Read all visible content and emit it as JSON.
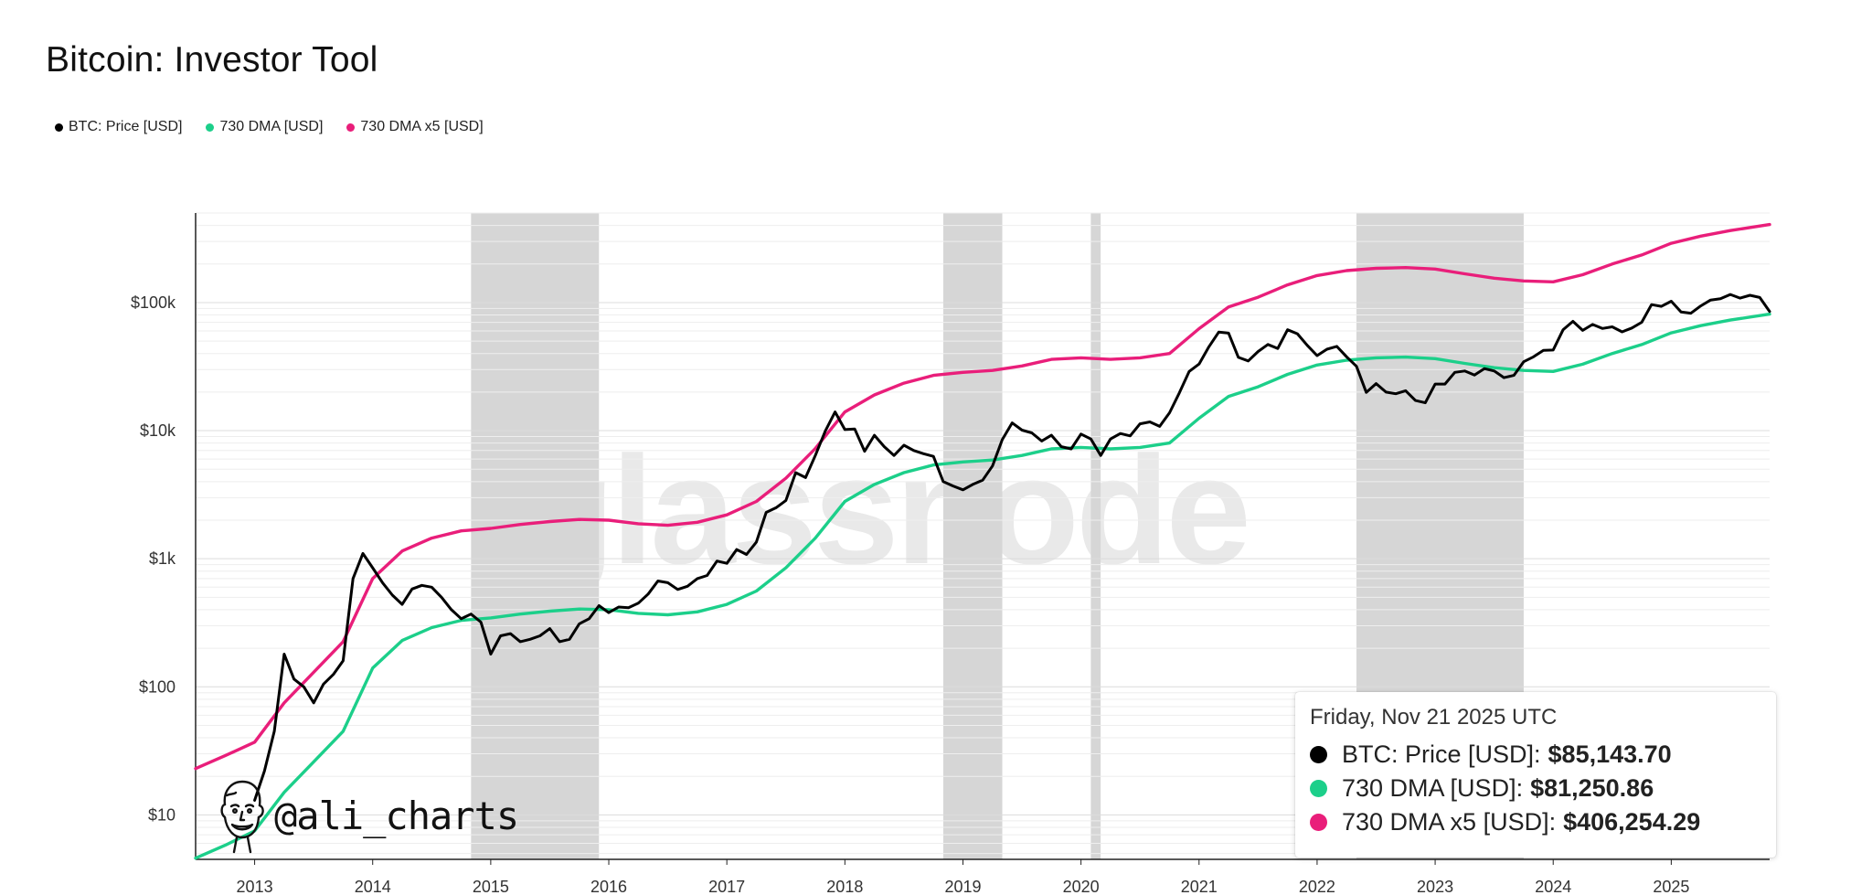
{
  "page": {
    "title": "Bitcoin: Investor Tool",
    "watermark": "glassnode",
    "signature": "@ali_charts"
  },
  "legend": [
    {
      "label": "BTC: Price [USD]",
      "color": "#000000"
    },
    {
      "label": "730 DMA [USD]",
      "color": "#1ccf8a"
    },
    {
      "label": "730 DMA x5 [USD]",
      "color": "#e91e7a"
    }
  ],
  "tooltip": {
    "date": "Friday, Nov 21 2025 UTC",
    "rows": [
      {
        "label": "BTC: Price [USD]:",
        "value": "$85,143.70",
        "color": "#000000"
      },
      {
        "label": "730 DMA [USD]:",
        "value": "$81,250.86",
        "color": "#1ccf8a"
      },
      {
        "label": "730 DMA x5 [USD]:",
        "value": "$406,254.29",
        "color": "#e91e7a"
      }
    ]
  },
  "chart_data": {
    "type": "line",
    "title": "Bitcoin: Investor Tool",
    "xlabel": "",
    "ylabel": "",
    "yscale": "log",
    "ylim": [
      4.5,
      500000
    ],
    "xlim": [
      "2012-07",
      "2025-11"
    ],
    "grid": true,
    "legend_position": "top-left",
    "x_ticks": [
      "2013",
      "2014",
      "2015",
      "2016",
      "2017",
      "2018",
      "2019",
      "2020",
      "2021",
      "2022",
      "2023",
      "2024",
      "2025"
    ],
    "y_ticks": [
      {
        "label": "$10",
        "value": 10
      },
      {
        "label": "$100",
        "value": 100
      },
      {
        "label": "$1k",
        "value": 1000
      },
      {
        "label": "$10k",
        "value": 10000
      },
      {
        "label": "$100k",
        "value": 100000
      }
    ],
    "shaded_periods": [
      {
        "start": "2014-11",
        "end": "2015-12"
      },
      {
        "start": "2018-11",
        "end": "2019-05"
      },
      {
        "start": "2020-02",
        "end": "2020-03"
      },
      {
        "start": "2022-05",
        "end": "2023-10"
      }
    ],
    "series": [
      {
        "name": "BTC: Price [USD]",
        "color": "#000000",
        "points": [
          [
            "2013-01",
            13
          ],
          [
            "2013-02",
            22
          ],
          [
            "2013-03",
            45
          ],
          [
            "2013-04",
            180
          ],
          [
            "2013-05",
            115
          ],
          [
            "2013-06",
            100
          ],
          [
            "2013-07",
            75
          ],
          [
            "2013-08",
            105
          ],
          [
            "2013-09",
            125
          ],
          [
            "2013-10",
            160
          ],
          [
            "2013-11",
            700
          ],
          [
            "2013-12",
            1100
          ],
          [
            "2014-01",
            850
          ],
          [
            "2014-02",
            650
          ],
          [
            "2014-03",
            520
          ],
          [
            "2014-04",
            440
          ],
          [
            "2014-05",
            580
          ],
          [
            "2014-06",
            620
          ],
          [
            "2014-07",
            600
          ],
          [
            "2014-08",
            500
          ],
          [
            "2014-09",
            400
          ],
          [
            "2014-10",
            340
          ],
          [
            "2014-11",
            370
          ],
          [
            "2014-12",
            320
          ],
          [
            "2015-01",
            180
          ],
          [
            "2015-02",
            250
          ],
          [
            "2015-03",
            260
          ],
          [
            "2015-04",
            225
          ],
          [
            "2015-05",
            235
          ],
          [
            "2015-06",
            250
          ],
          [
            "2015-07",
            285
          ],
          [
            "2015-08",
            225
          ],
          [
            "2015-09",
            235
          ],
          [
            "2015-10",
            310
          ],
          [
            "2015-11",
            340
          ],
          [
            "2015-12",
            430
          ],
          [
            "2016-01",
            380
          ],
          [
            "2016-02",
            420
          ],
          [
            "2016-03",
            415
          ],
          [
            "2016-04",
            450
          ],
          [
            "2016-05",
            530
          ],
          [
            "2016-06",
            670
          ],
          [
            "2016-07",
            650
          ],
          [
            "2016-08",
            575
          ],
          [
            "2016-09",
            610
          ],
          [
            "2016-10",
            700
          ],
          [
            "2016-11",
            740
          ],
          [
            "2016-12",
            960
          ],
          [
            "2017-01",
            920
          ],
          [
            "2017-02",
            1180
          ],
          [
            "2017-03",
            1080
          ],
          [
            "2017-04",
            1350
          ],
          [
            "2017-05",
            2300
          ],
          [
            "2017-06",
            2500
          ],
          [
            "2017-07",
            2850
          ],
          [
            "2017-08",
            4700
          ],
          [
            "2017-09",
            4300
          ],
          [
            "2017-10",
            6400
          ],
          [
            "2017-11",
            9900
          ],
          [
            "2017-12",
            14000
          ],
          [
            "2018-01",
            10200
          ],
          [
            "2018-02",
            10300
          ],
          [
            "2018-03",
            6900
          ],
          [
            "2018-04",
            9200
          ],
          [
            "2018-05",
            7500
          ],
          [
            "2018-06",
            6400
          ],
          [
            "2018-07",
            7700
          ],
          [
            "2018-08",
            7000
          ],
          [
            "2018-09",
            6600
          ],
          [
            "2018-10",
            6300
          ],
          [
            "2018-11",
            4000
          ],
          [
            "2018-12",
            3700
          ],
          [
            "2019-01",
            3450
          ],
          [
            "2019-02",
            3800
          ],
          [
            "2019-03",
            4100
          ],
          [
            "2019-04",
            5300
          ],
          [
            "2019-05",
            8500
          ],
          [
            "2019-06",
            11500
          ],
          [
            "2019-07",
            10100
          ],
          [
            "2019-08",
            9600
          ],
          [
            "2019-09",
            8300
          ],
          [
            "2019-10",
            9200
          ],
          [
            "2019-11",
            7500
          ],
          [
            "2019-12",
            7200
          ],
          [
            "2020-01",
            9400
          ],
          [
            "2020-02",
            8600
          ],
          [
            "2020-03",
            6400
          ],
          [
            "2020-04",
            8600
          ],
          [
            "2020-05",
            9500
          ],
          [
            "2020-06",
            9100
          ],
          [
            "2020-07",
            11300
          ],
          [
            "2020-08",
            11700
          ],
          [
            "2020-09",
            10800
          ],
          [
            "2020-10",
            13800
          ],
          [
            "2020-11",
            19700
          ],
          [
            "2020-12",
            29000
          ],
          [
            "2021-01",
            33100
          ],
          [
            "2021-02",
            45100
          ],
          [
            "2021-03",
            58800
          ],
          [
            "2021-04",
            57700
          ],
          [
            "2021-05",
            37300
          ],
          [
            "2021-06",
            35000
          ],
          [
            "2021-07",
            41500
          ],
          [
            "2021-08",
            47100
          ],
          [
            "2021-09",
            43800
          ],
          [
            "2021-10",
            61300
          ],
          [
            "2021-11",
            57000
          ],
          [
            "2021-12",
            46300
          ],
          [
            "2022-01",
            38500
          ],
          [
            "2022-02",
            43200
          ],
          [
            "2022-03",
            45500
          ],
          [
            "2022-04",
            37700
          ],
          [
            "2022-05",
            31800
          ],
          [
            "2022-06",
            19900
          ],
          [
            "2022-07",
            23300
          ],
          [
            "2022-08",
            20000
          ],
          [
            "2022-09",
            19400
          ],
          [
            "2022-10",
            20500
          ],
          [
            "2022-11",
            17200
          ],
          [
            "2022-12",
            16500
          ],
          [
            "2023-01",
            23100
          ],
          [
            "2023-02",
            23100
          ],
          [
            "2023-03",
            28500
          ],
          [
            "2023-04",
            29200
          ],
          [
            "2023-05",
            27200
          ],
          [
            "2023-06",
            30500
          ],
          [
            "2023-07",
            29200
          ],
          [
            "2023-08",
            25900
          ],
          [
            "2023-09",
            27000
          ],
          [
            "2023-10",
            34500
          ],
          [
            "2023-11",
            37700
          ],
          [
            "2023-12",
            42300
          ],
          [
            "2024-01",
            42600
          ],
          [
            "2024-02",
            61200
          ],
          [
            "2024-03",
            71300
          ],
          [
            "2024-04",
            60600
          ],
          [
            "2024-05",
            67500
          ],
          [
            "2024-06",
            62700
          ],
          [
            "2024-07",
            64600
          ],
          [
            "2024-08",
            59000
          ],
          [
            "2024-09",
            63300
          ],
          [
            "2024-10",
            70200
          ],
          [
            "2024-11",
            96400
          ],
          [
            "2024-12",
            93400
          ],
          [
            "2025-01",
            102400
          ],
          [
            "2025-02",
            84300
          ],
          [
            "2025-03",
            82500
          ],
          [
            "2025-04",
            94200
          ],
          [
            "2025-05",
            104600
          ],
          [
            "2025-06",
            107100
          ],
          [
            "2025-07",
            115700
          ],
          [
            "2025-08",
            108200
          ],
          [
            "2025-09",
            114000
          ],
          [
            "2025-10",
            109500
          ],
          [
            "2025-11",
            85144
          ]
        ]
      },
      {
        "name": "730 DMA [USD]",
        "color": "#1ccf8a",
        "points": [
          [
            "2012-07",
            4.6
          ],
          [
            "2012-10",
            5.8
          ],
          [
            "2013-01",
            7.5
          ],
          [
            "2013-04",
            15
          ],
          [
            "2013-07",
            26
          ],
          [
            "2013-10",
            45
          ],
          [
            "2014-01",
            140
          ],
          [
            "2014-04",
            230
          ],
          [
            "2014-07",
            290
          ],
          [
            "2014-10",
            330
          ],
          [
            "2015-01",
            345
          ],
          [
            "2015-04",
            370
          ],
          [
            "2015-07",
            390
          ],
          [
            "2015-10",
            405
          ],
          [
            "2016-01",
            400
          ],
          [
            "2016-04",
            375
          ],
          [
            "2016-07",
            365
          ],
          [
            "2016-10",
            385
          ],
          [
            "2017-01",
            440
          ],
          [
            "2017-04",
            560
          ],
          [
            "2017-07",
            850
          ],
          [
            "2017-10",
            1450
          ],
          [
            "2018-01",
            2800
          ],
          [
            "2018-04",
            3800
          ],
          [
            "2018-07",
            4700
          ],
          [
            "2018-10",
            5400
          ],
          [
            "2019-01",
            5700
          ],
          [
            "2019-04",
            5900
          ],
          [
            "2019-07",
            6400
          ],
          [
            "2019-10",
            7200
          ],
          [
            "2020-01",
            7400
          ],
          [
            "2020-04",
            7200
          ],
          [
            "2020-07",
            7400
          ],
          [
            "2020-10",
            8000
          ],
          [
            "2021-01",
            12500
          ],
          [
            "2021-04",
            18500
          ],
          [
            "2021-07",
            22000
          ],
          [
            "2021-10",
            27500
          ],
          [
            "2022-01",
            32500
          ],
          [
            "2022-04",
            35500
          ],
          [
            "2022-07",
            37000
          ],
          [
            "2022-10",
            37500
          ],
          [
            "2023-01",
            36500
          ],
          [
            "2023-04",
            33500
          ],
          [
            "2023-07",
            31000
          ],
          [
            "2023-10",
            29500
          ],
          [
            "2024-01",
            29000
          ],
          [
            "2024-04",
            33000
          ],
          [
            "2024-07",
            40000
          ],
          [
            "2024-10",
            47000
          ],
          [
            "2025-01",
            58000
          ],
          [
            "2025-04",
            66000
          ],
          [
            "2025-07",
            73000
          ],
          [
            "2025-11",
            81251
          ]
        ]
      },
      {
        "name": "730 DMA x5 [USD]",
        "color": "#e91e7a",
        "points": [
          [
            "2012-07",
            23
          ],
          [
            "2012-10",
            29
          ],
          [
            "2013-01",
            37
          ],
          [
            "2013-04",
            75
          ],
          [
            "2013-07",
            130
          ],
          [
            "2013-10",
            225
          ],
          [
            "2014-01",
            700
          ],
          [
            "2014-04",
            1150
          ],
          [
            "2014-07",
            1450
          ],
          [
            "2014-10",
            1650
          ],
          [
            "2015-01",
            1725
          ],
          [
            "2015-04",
            1850
          ],
          [
            "2015-07",
            1950
          ],
          [
            "2015-10",
            2025
          ],
          [
            "2016-01",
            2000
          ],
          [
            "2016-04",
            1875
          ],
          [
            "2016-07",
            1825
          ],
          [
            "2016-10",
            1925
          ],
          [
            "2017-01",
            2200
          ],
          [
            "2017-04",
            2800
          ],
          [
            "2017-07",
            4250
          ],
          [
            "2017-10",
            7250
          ],
          [
            "2018-01",
            14000
          ],
          [
            "2018-04",
            19000
          ],
          [
            "2018-07",
            23500
          ],
          [
            "2018-10",
            27000
          ],
          [
            "2019-01",
            28500
          ],
          [
            "2019-04",
            29500
          ],
          [
            "2019-07",
            32000
          ],
          [
            "2019-10",
            36000
          ],
          [
            "2020-01",
            37000
          ],
          [
            "2020-04",
            36000
          ],
          [
            "2020-07",
            37000
          ],
          [
            "2020-10",
            40000
          ],
          [
            "2021-01",
            62500
          ],
          [
            "2021-04",
            92500
          ],
          [
            "2021-07",
            110000
          ],
          [
            "2021-10",
            137500
          ],
          [
            "2022-01",
            162500
          ],
          [
            "2022-04",
            177500
          ],
          [
            "2022-07",
            185000
          ],
          [
            "2022-10",
            187500
          ],
          [
            "2023-01",
            182500
          ],
          [
            "2023-04",
            167500
          ],
          [
            "2023-07",
            155000
          ],
          [
            "2023-10",
            147500
          ],
          [
            "2024-01",
            145000
          ],
          [
            "2024-04",
            165000
          ],
          [
            "2024-07",
            200000
          ],
          [
            "2024-10",
            235000
          ],
          [
            "2025-01",
            290000
          ],
          [
            "2025-04",
            330000
          ],
          [
            "2025-07",
            365000
          ],
          [
            "2025-11",
            406254
          ]
        ]
      }
    ]
  }
}
